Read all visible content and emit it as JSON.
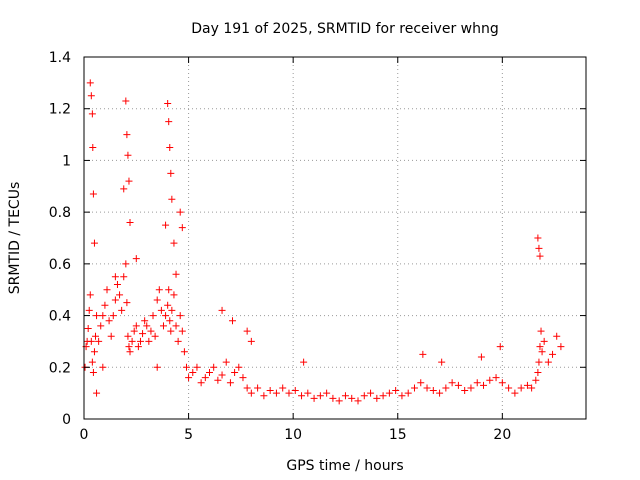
{
  "chart_data": {
    "type": "scatter",
    "title": "Day 191 of 2025, SRMTID for receiver whng",
    "xlabel": "GPS time / hours",
    "ylabel": "SRMTID / TECUs",
    "xlim": [
      0,
      24
    ],
    "ylim": [
      0,
      1.4
    ],
    "xticks": [
      0,
      5,
      10,
      15,
      20
    ],
    "xtick_labels": [
      "0",
      "5",
      "10",
      "15",
      "20"
    ],
    "yticks": [
      0,
      0.2,
      0.4,
      0.6,
      0.8,
      1.0,
      1.2,
      1.4
    ],
    "ytick_labels": [
      "0",
      "0.2",
      "0.4",
      "0.6",
      "0.8",
      "1",
      "1.2",
      "1.4"
    ],
    "grid": true,
    "marker": "plus",
    "color": "#ff0000",
    "series": [
      {
        "name": "SRMTID",
        "x": [
          0.05,
          0.1,
          0.15,
          0.2,
          0.25,
          0.3,
          0.35,
          0.4,
          0.45,
          0.5,
          0.55,
          0.6,
          0.7,
          0.8,
          0.9,
          1.0,
          1.1,
          1.2,
          1.3,
          1.4,
          1.5,
          1.6,
          1.7,
          1.8,
          1.9,
          2.0,
          2.05,
          2.1,
          2.15,
          2.2,
          2.3,
          2.4,
          2.5,
          2.6,
          2.7,
          2.8,
          2.9,
          3.0,
          3.1,
          3.2,
          3.3,
          3.4,
          3.5,
          3.6,
          3.7,
          3.8,
          3.9,
          4.0,
          4.05,
          4.1,
          4.15,
          4.2,
          4.3,
          4.4,
          4.5,
          4.6,
          4.7,
          4.8,
          4.9,
          5.0,
          5.2,
          5.4,
          5.6,
          5.8,
          6.0,
          6.2,
          6.4,
          6.6,
          6.8,
          7.0,
          7.2,
          7.4,
          7.6,
          7.8,
          8.0,
          8.3,
          8.6,
          8.9,
          9.2,
          9.5,
          9.8,
          10.1,
          10.4,
          10.7,
          11.0,
          11.3,
          11.6,
          11.9,
          12.2,
          12.5,
          12.8,
          13.1,
          13.4,
          13.7,
          14.0,
          14.3,
          14.6,
          14.9,
          15.2,
          15.5,
          15.8,
          16.1,
          16.4,
          16.7,
          17.0,
          17.3,
          17.6,
          17.9,
          18.2,
          18.5,
          18.8,
          19.1,
          19.4,
          19.7,
          20.0,
          20.3,
          20.6,
          20.9,
          21.2,
          21.4,
          21.6,
          21.7,
          21.75,
          21.8,
          21.85,
          21.9,
          22.0,
          22.2,
          22.4,
          22.6,
          22.8,
          0.3,
          0.35,
          0.4,
          0.42,
          0.45,
          0.5,
          2.0,
          2.05,
          2.1,
          2.15,
          4.0,
          4.05,
          4.1,
          4.15,
          4.2,
          4.6,
          4.7,
          1.9,
          2.2,
          3.9,
          4.3,
          0.6,
          0.9,
          1.5,
          2.5,
          3.5,
          4.4,
          6.6,
          7.1,
          7.8,
          8.0,
          10.5,
          16.2,
          17.1,
          19.0,
          19.9,
          21.7,
          21.8,
          21.75
        ],
        "y": [
          0.2,
          0.28,
          0.3,
          0.35,
          0.42,
          0.48,
          0.3,
          0.22,
          0.18,
          0.26,
          0.32,
          0.4,
          0.3,
          0.36,
          0.4,
          0.44,
          0.5,
          0.38,
          0.32,
          0.4,
          0.46,
          0.52,
          0.48,
          0.42,
          0.55,
          0.6,
          0.45,
          0.32,
          0.28,
          0.26,
          0.3,
          0.34,
          0.36,
          0.28,
          0.3,
          0.33,
          0.38,
          0.36,
          0.3,
          0.34,
          0.4,
          0.32,
          0.46,
          0.5,
          0.42,
          0.36,
          0.4,
          0.44,
          0.5,
          0.38,
          0.34,
          0.42,
          0.48,
          0.36,
          0.3,
          0.4,
          0.34,
          0.26,
          0.2,
          0.16,
          0.18,
          0.2,
          0.14,
          0.16,
          0.18,
          0.2,
          0.15,
          0.17,
          0.22,
          0.14,
          0.18,
          0.2,
          0.16,
          0.12,
          0.1,
          0.12,
          0.09,
          0.11,
          0.1,
          0.12,
          0.1,
          0.11,
          0.09,
          0.1,
          0.08,
          0.09,
          0.1,
          0.08,
          0.07,
          0.09,
          0.08,
          0.07,
          0.09,
          0.1,
          0.08,
          0.09,
          0.1,
          0.11,
          0.09,
          0.1,
          0.12,
          0.14,
          0.12,
          0.11,
          0.1,
          0.12,
          0.14,
          0.13,
          0.11,
          0.12,
          0.14,
          0.13,
          0.15,
          0.16,
          0.14,
          0.12,
          0.1,
          0.12,
          0.13,
          0.12,
          0.15,
          0.18,
          0.22,
          0.28,
          0.34,
          0.26,
          0.3,
          0.22,
          0.25,
          0.32,
          0.28,
          1.3,
          1.25,
          1.18,
          1.05,
          0.87,
          0.68,
          1.23,
          1.1,
          1.02,
          0.92,
          1.22,
          1.15,
          1.05,
          0.95,
          0.85,
          0.8,
          0.74,
          0.89,
          0.76,
          0.75,
          0.68,
          0.1,
          0.2,
          0.55,
          0.62,
          0.2,
          0.56,
          0.42,
          0.38,
          0.34,
          0.3,
          0.22,
          0.25,
          0.22,
          0.24,
          0.28,
          0.7,
          0.63,
          0.66
        ]
      }
    ]
  }
}
